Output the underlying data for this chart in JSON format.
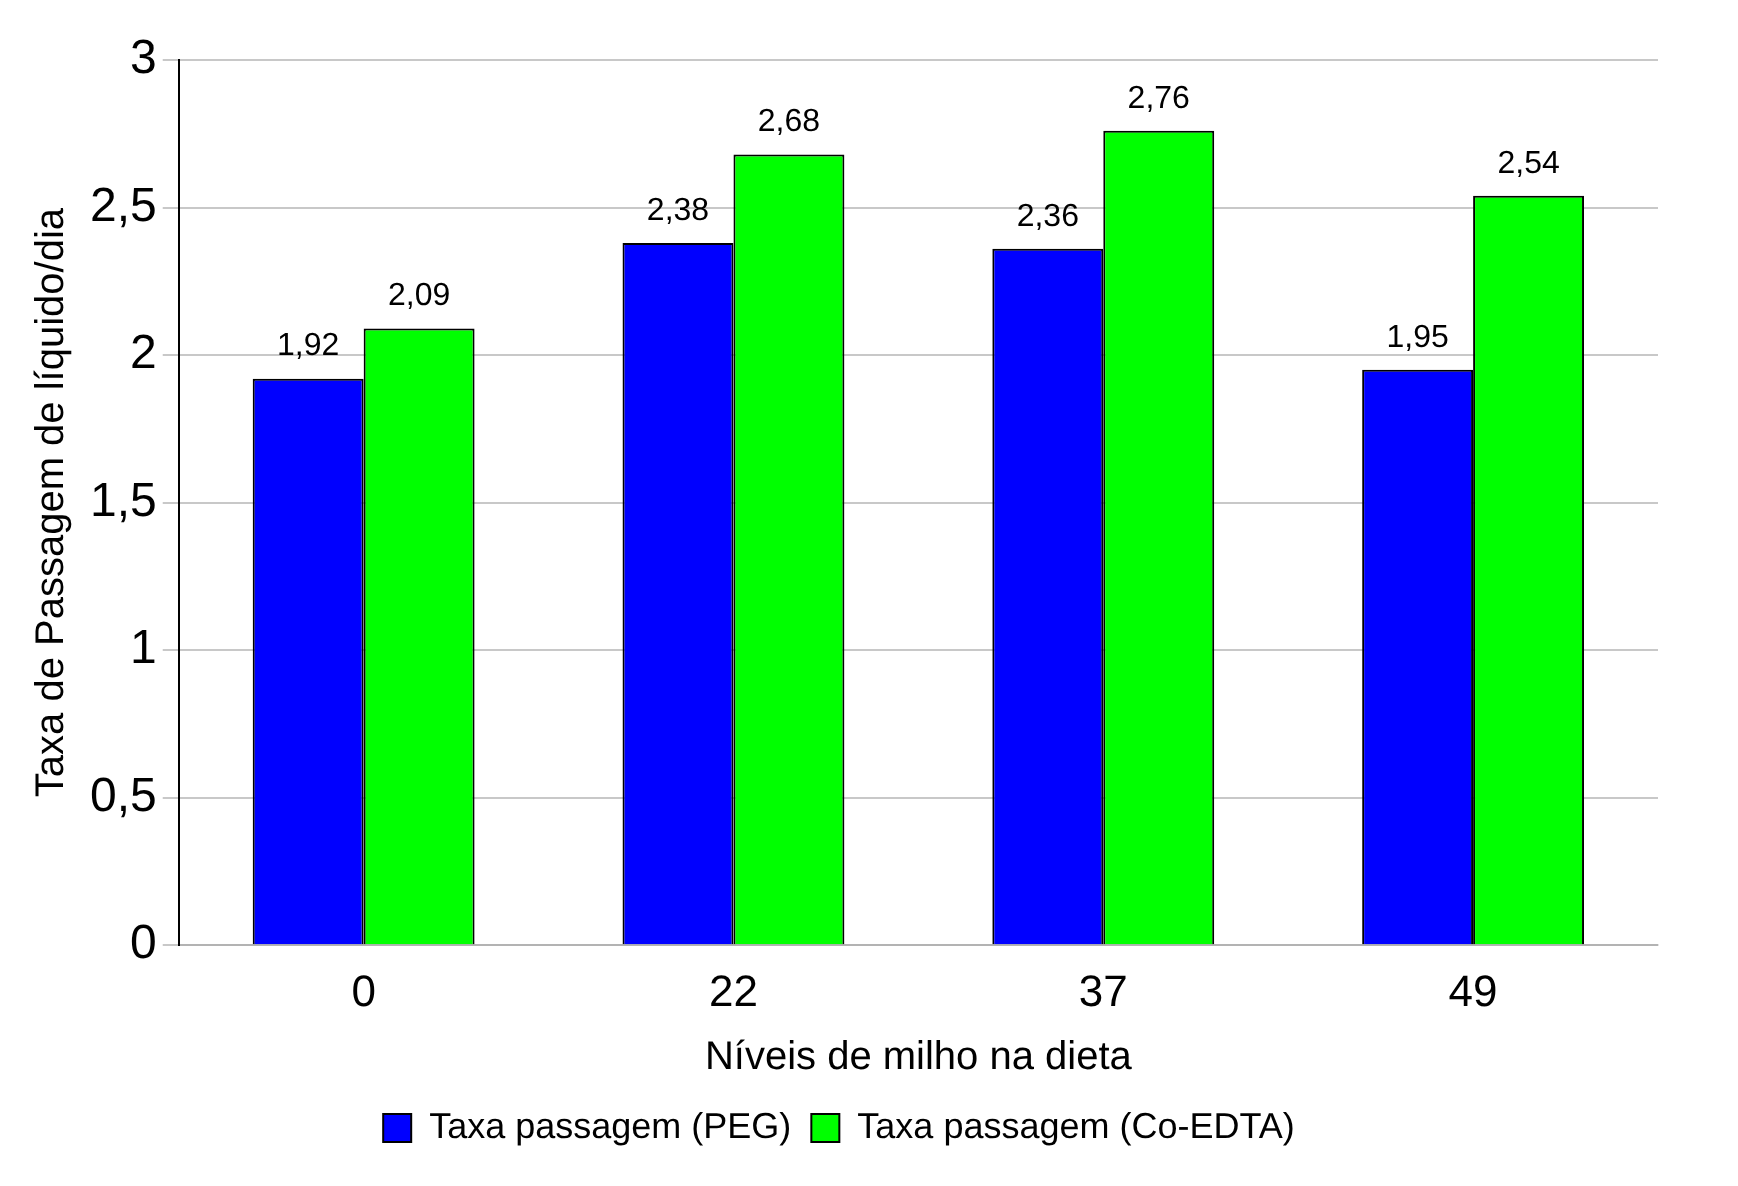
{
  "chart_data": {
    "type": "bar",
    "xlabel": "Níveis de milho na dieta",
    "ylabel": "Taxa de Passagem de líquido/dia",
    "categories": [
      "0",
      "22",
      "37",
      "49"
    ],
    "series": [
      {
        "name": "Taxa passagem (PEG)",
        "color": "#0000ff",
        "values": [
          1.92,
          2.38,
          2.36,
          1.95
        ],
        "value_labels": [
          "1,92",
          "2,38",
          "2,36",
          "1,95"
        ]
      },
      {
        "name": "Taxa passagem (Co-EDTA)",
        "color": "#00ff00",
        "values": [
          2.09,
          2.68,
          2.76,
          2.54
        ],
        "value_labels": [
          "2,09",
          "2,68",
          "2,76",
          "2,54"
        ]
      }
    ],
    "ylim": [
      0,
      3
    ],
    "yticks": [
      0,
      {
        "value": 0.5,
        "label": "0,5"
      },
      1,
      {
        "value": 1.5,
        "label": "1,5"
      },
      2,
      {
        "value": 2.5,
        "label": "2,5"
      },
      3
    ],
    "grid": "y",
    "legend": "bottom"
  }
}
